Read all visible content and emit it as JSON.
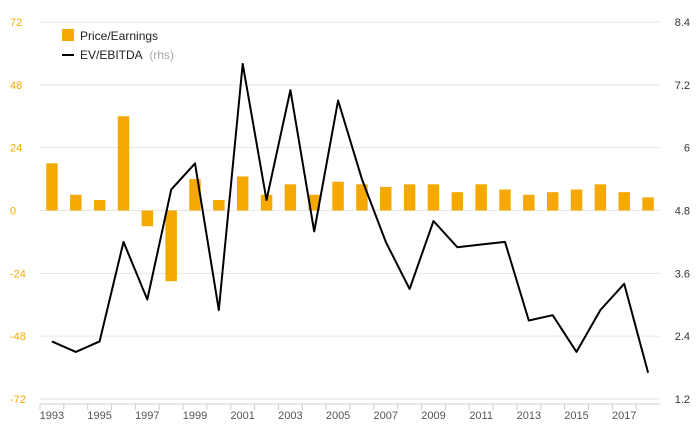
{
  "chart_data": {
    "type": "bar+line",
    "categories": [
      "1993",
      "1994",
      "1995",
      "1996",
      "1997",
      "1998",
      "1999",
      "2000",
      "2001",
      "2002",
      "2003",
      "2004",
      "2005",
      "2006",
      "2007",
      "2008",
      "2009",
      "2010",
      "2011",
      "2012",
      "2013",
      "2014",
      "2015",
      "2016",
      "2017",
      "2018"
    ],
    "x_tick_labels": [
      "1993",
      "1995",
      "1997",
      "1999",
      "2001",
      "2003",
      "2005",
      "2007",
      "2009",
      "2011",
      "2013",
      "2015",
      "2017"
    ],
    "series": [
      {
        "name": "Price/Earnings",
        "type": "bar",
        "axis": "left",
        "color": "#f5a800",
        "values": [
          18,
          6,
          4,
          36,
          -6,
          -27,
          12,
          4,
          13,
          6,
          10,
          6,
          11,
          10,
          9,
          10,
          10,
          7,
          10,
          8,
          6,
          7,
          8,
          10,
          7,
          5
        ]
      },
      {
        "name": "EV/EBITDA",
        "name_suffix": "(rhs)",
        "type": "line",
        "axis": "right",
        "color": "#000000",
        "values": [
          2.3,
          2.1,
          2.3,
          4.2,
          3.1,
          5.2,
          5.7,
          2.9,
          7.6,
          5.0,
          7.1,
          4.4,
          6.9,
          5.4,
          4.2,
          3.3,
          4.6,
          4.1,
          4.15,
          4.2,
          2.7,
          2.8,
          2.1,
          2.9,
          3.4,
          1.7
        ]
      }
    ],
    "y_left": {
      "ylim": [
        -72,
        72
      ],
      "ticks": [
        "72",
        "48",
        "24",
        "0",
        "-24",
        "-48",
        "-72"
      ],
      "color": "#f5a800"
    },
    "y_right": {
      "ylim": [
        1.2,
        8.4
      ],
      "ticks": [
        "8.4",
        "7.2",
        "6",
        "4.8",
        "3.6",
        "2.4",
        "1.2"
      ]
    },
    "grid": true,
    "legend_position": "top-left"
  },
  "legend": {
    "bar_label": "Price/Earnings",
    "line_label": "EV/EBITDA",
    "line_suffix": "(rhs)"
  }
}
